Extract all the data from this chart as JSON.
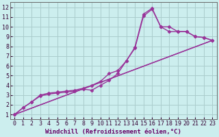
{
  "background_color": "#cceeee",
  "grid_color": "#aacccc",
  "line_color": "#993399",
  "marker": "D",
  "markersize": 2.5,
  "linewidth": 1.0,
  "xlim": [
    -0.5,
    23.5
  ],
  "ylim": [
    0.5,
    12.5
  ],
  "xlabel": "Windchill (Refroidissement éolien,°C)",
  "xlabel_fontsize": 6.5,
  "xticks": [
    0,
    1,
    2,
    3,
    4,
    5,
    6,
    7,
    8,
    9,
    10,
    11,
    12,
    13,
    14,
    15,
    16,
    17,
    18,
    19,
    20,
    21,
    22,
    23
  ],
  "yticks": [
    1,
    2,
    3,
    4,
    5,
    6,
    7,
    8,
    9,
    10,
    11,
    12
  ],
  "tick_fontsize": 6,
  "series": [
    {
      "x": [
        0,
        1,
        2,
        3,
        4,
        5,
        6,
        7,
        8,
        9,
        10,
        11,
        12,
        13,
        14,
        15,
        16,
        17,
        18,
        19,
        20,
        21,
        22,
        23
      ],
      "y": [
        1,
        1.7,
        2.3,
        3.0,
        3.2,
        3.3,
        3.4,
        3.5,
        3.7,
        4.0,
        4.4,
        5.2,
        5.5,
        6.5,
        7.9,
        11.3,
        11.9,
        10.0,
        9.5,
        9.5,
        9.5,
        9.0,
        8.9,
        8.6
      ],
      "marker": true
    },
    {
      "x": [
        0,
        1,
        2,
        3,
        4,
        5,
        6,
        7,
        8,
        9,
        10,
        11,
        12,
        13,
        14,
        15,
        16,
        17,
        18,
        19,
        20,
        21,
        22,
        23
      ],
      "y": [
        1,
        1.7,
        2.3,
        2.9,
        3.1,
        3.2,
        3.3,
        3.4,
        3.6,
        3.5,
        4.0,
        4.5,
        5.2,
        6.5,
        7.8,
        11.1,
        11.8,
        10.0,
        10.0,
        9.5,
        9.5,
        9.0,
        8.9,
        8.6
      ],
      "marker": true
    },
    {
      "x": [
        0,
        23
      ],
      "y": [
        1,
        8.6
      ],
      "marker": false
    },
    {
      "x": [
        0,
        23
      ],
      "y": [
        1,
        8.6
      ],
      "marker": false
    }
  ]
}
